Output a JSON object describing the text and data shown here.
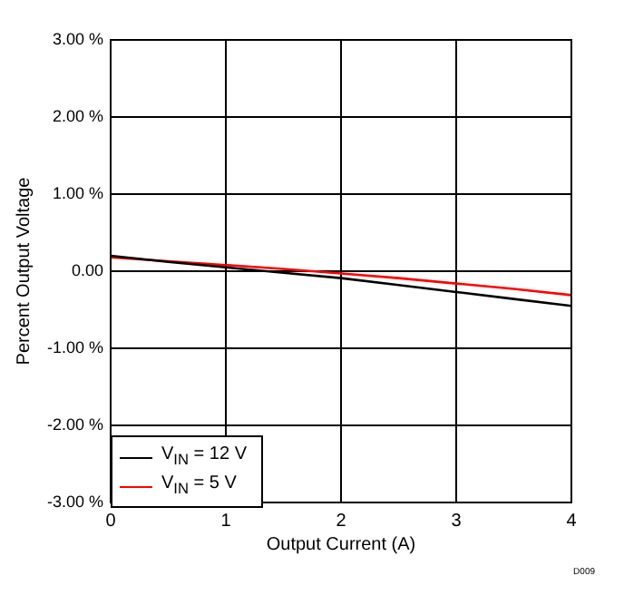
{
  "chart_data": {
    "type": "line",
    "xlabel": "Output Current (A)",
    "ylabel": "Percent Output Voltage",
    "x": [
      0,
      0.5,
      1,
      1.5,
      2,
      2.5,
      3,
      3.5,
      4
    ],
    "series": [
      {
        "name": "V$_{IN}$ = 12 V",
        "color": "#000000",
        "values": [
          0.2,
          0.12,
          0.05,
          -0.02,
          -0.09,
          -0.18,
          -0.27,
          -0.36,
          -0.45
        ]
      },
      {
        "name": "V$_{IN}$ = 5 V",
        "color": "#ff0000",
        "values": [
          0.18,
          0.13,
          0.08,
          0.03,
          -0.03,
          -0.09,
          -0.16,
          -0.23,
          -0.31
        ]
      }
    ],
    "xlim": [
      0,
      4
    ],
    "xticks": [
      0,
      1,
      2,
      3,
      4
    ],
    "ylim": [
      -3,
      3
    ],
    "yticks": [
      {
        "value": -3,
        "label": "-3.00 %"
      },
      {
        "value": -2,
        "label": "-2.00 %"
      },
      {
        "value": -1,
        "label": "-1.00 %"
      },
      {
        "value": 0,
        "label": "0.00"
      },
      {
        "value": 1,
        "label": "1.00 %"
      },
      {
        "value": 2,
        "label": "2.00 %"
      },
      {
        "value": 3,
        "label": "3.00 %"
      }
    ],
    "grid": true,
    "legend": "bottom left",
    "marker": "none",
    "line_style": "solid",
    "annotations": [
      "D009"
    ]
  }
}
